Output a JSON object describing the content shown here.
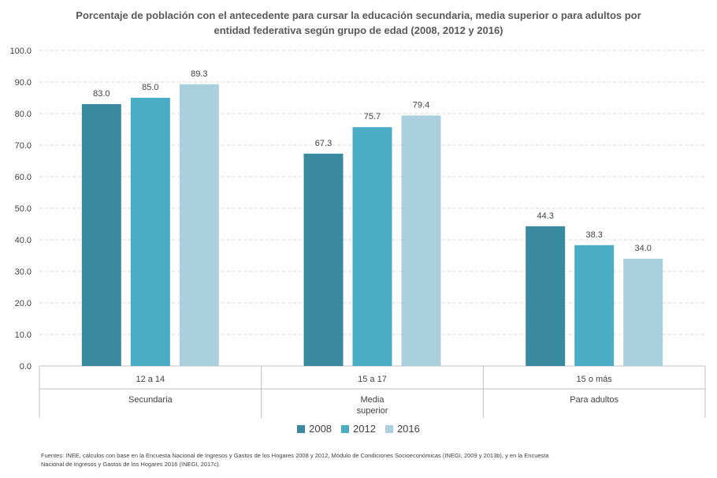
{
  "chart_data": {
    "type": "bar",
    "title_lines": [
      "Porcentaje de población con el antecedente para cursar la educación secundaria, media superior o para adultos por",
      "entidad federativa según grupo de edad (2008, 2012 y 2016)"
    ],
    "categories": [
      "12 a 14",
      "15 a 17",
      "15 o más"
    ],
    "groups": [
      [
        "Secundaria"
      ],
      [
        "Media",
        "superior"
      ],
      [
        "Para adultos"
      ]
    ],
    "series": [
      {
        "name": "2008",
        "values": [
          83.0,
          67.3,
          44.3
        ],
        "color": "#3A8A9F"
      },
      {
        "name": "2012",
        "values": [
          85.0,
          75.7,
          38.3
        ],
        "color": "#4BACC6"
      },
      {
        "name": "2016",
        "values": [
          89.3,
          79.4,
          34.0
        ],
        "color": "#A9D0DC"
      }
    ],
    "yticks": [
      "0.0",
      "10.0",
      "20.0",
      "30.0",
      "40.0",
      "50.0",
      "60.0",
      "70.0",
      "80.0",
      "90.0",
      "100.0"
    ],
    "ylim": [
      0,
      100
    ],
    "grid": true,
    "gridline_color": "#D9D9D9",
    "legend_position": "bottom",
    "source_lines": [
      "Fuentes: INEE, cálculos con base en la Encuesta Nacional de Ingresos y Gastos de los Hogares 2008 y 2012, Módulo de Condiciones Socioeconómicas (INEGI, 2009 y 2013b), y en la Encuesta",
      "Nacional de Ingresos y Gastos de los Hogares 2016 (INEGI, 2017c)."
    ]
  }
}
